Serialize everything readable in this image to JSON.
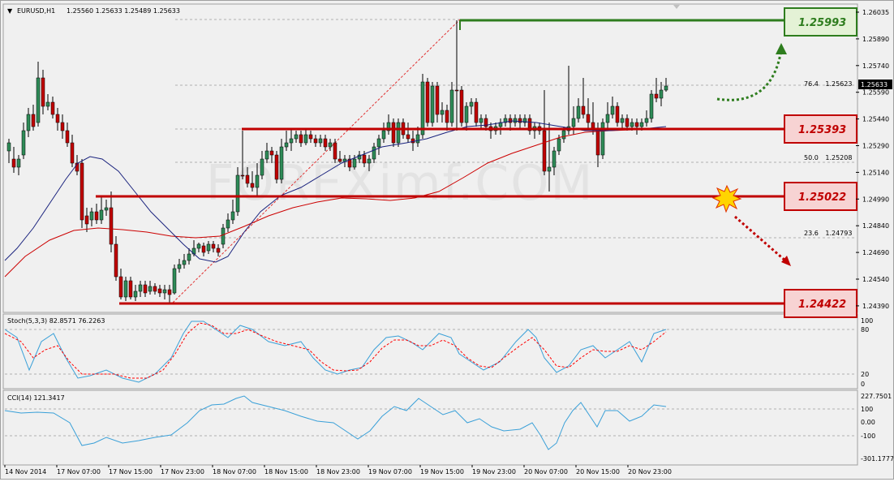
{
  "header": {
    "menu_glyph": "▼",
    "symbol_tf": "EURUSD,H1",
    "ohlc": "1.25560 1.25633 1.25489 1.25633"
  },
  "watermark": "FOREXimf.COM",
  "price_axis": {
    "ticks": [
      "1.26035",
      "1.25890",
      "1.25740",
      "1.25590",
      "1.25440",
      "1.25290",
      "1.25140",
      "1.24990",
      "1.24840",
      "1.24690",
      "1.24540",
      "1.24390"
    ],
    "current_price": "1.25633"
  },
  "fib_labels": [
    {
      "level": "76.4",
      "price": "1.25623"
    },
    {
      "level": "50.0",
      "price": "1.25208"
    },
    {
      "level": "23.6",
      "price": "1.24793"
    }
  ],
  "levels": [
    {
      "price": "1.25993",
      "color": "#2e7d1e",
      "box_bg": "#e4f2d6",
      "text_color": "#2e7d1e"
    },
    {
      "price": "1.25393",
      "color": "#c00000",
      "box_bg": "#f7d3d3",
      "text_color": "#c00000"
    },
    {
      "price": "1.25022",
      "color": "#c00000",
      "box_bg": "#f7d3d3",
      "text_color": "#c00000"
    },
    {
      "price": "1.24422",
      "color": "#c00000",
      "box_bg": "#f7d3d3",
      "text_color": "#c00000"
    }
  ],
  "stoch": {
    "title": "Stoch(5,3,3) 82.8571 76.2263",
    "ticks": [
      "100",
      "80",
      "20",
      "0"
    ]
  },
  "cci": {
    "title": "CCI(14) 121.3417",
    "ticks": [
      "227.7501",
      "100",
      "0.00",
      "-100",
      "-301.1777"
    ]
  },
  "time_axis": [
    "14 Nov 2014",
    "17 Nov 07:00",
    "17 Nov 15:00",
    "17 Nov 23:00",
    "18 Nov 07:00",
    "18 Nov 15:00",
    "18 Nov 23:00",
    "19 Nov 07:00",
    "19 Nov 15:00",
    "19 Nov 23:00",
    "20 Nov 07:00",
    "20 Nov 15:00",
    "20 Nov 23:00"
  ],
  "colors": {
    "bull_candle": "#2e8b57",
    "bear_candle": "#c00000",
    "ma_fast": "#1a237e",
    "ma_slow": "#cc0000",
    "stoch_main": "#3aa0d8",
    "stoch_signal": "#ff0000",
    "cci_line": "#3aa0d8",
    "green_arrow": "#2e7d1e",
    "red_arrow": "#c00000",
    "burst": "#ffd400"
  },
  "icons": [
    "menu-arrow-icon",
    "scroll-down-icon",
    "burst-icon",
    "green-curved-arrow-icon",
    "red-dotted-arrow-icon"
  ]
}
